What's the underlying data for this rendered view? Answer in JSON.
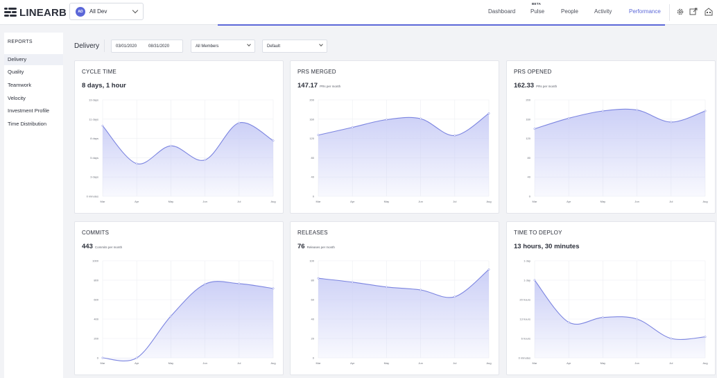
{
  "header": {
    "logo": "LINEARB",
    "team": {
      "initials": "AD",
      "label": "All Dev"
    },
    "nav": [
      {
        "label": "Dashboard",
        "active": false
      },
      {
        "label": "Pulse",
        "badge": "BETA",
        "active": false
      },
      {
        "label": "People",
        "active": false
      },
      {
        "label": "Activity",
        "active": false
      },
      {
        "label": "Performance",
        "active": true
      }
    ],
    "icons": [
      "gear-icon",
      "export-icon",
      "building-icon"
    ]
  },
  "sidebar": {
    "title": "REPORTS",
    "items": [
      {
        "label": "Delivery",
        "active": true
      },
      {
        "label": "Quality"
      },
      {
        "label": "Teamwork"
      },
      {
        "label": "Velocity"
      },
      {
        "label": "Investment Profile"
      },
      {
        "label": "Time Distribution"
      }
    ]
  },
  "filters": {
    "page_title": "Delivery",
    "date_start": "03/01/2020",
    "date_end": "08/31/2020",
    "members": "All Members",
    "view": "Default"
  },
  "colors": {
    "accent": "#5b67d8",
    "line": "#7b84e0",
    "fill": "#c9cdf6"
  },
  "chart_data": [
    {
      "type": "area",
      "title": "CYCLE TIME",
      "value": "8 days, 1 hour",
      "unit": "",
      "categories": [
        "Mar",
        "Apr",
        "May",
        "Jun",
        "Jul",
        "Aug"
      ],
      "yticks": [
        "0 minutes",
        "3 days",
        "5 days",
        "8 days",
        "11 days",
        "13 days"
      ],
      "ylim": [
        0,
        13
      ],
      "values": [
        9.5,
        4.4,
        6.8,
        4.9,
        9.9,
        7.5
      ],
      "grid": true
    },
    {
      "type": "area",
      "title": "PRS MERGED",
      "value": "147.17",
      "unit": "PRs per month",
      "categories": [
        "Mar",
        "Apr",
        "May",
        "Jun",
        "Jul",
        "Aug"
      ],
      "yticks": [
        "0",
        "40",
        "80",
        "120",
        "160",
        "200"
      ],
      "ylim": [
        0,
        200
      ],
      "values": [
        127,
        143,
        159,
        161,
        126,
        172
      ],
      "grid": true
    },
    {
      "type": "area",
      "title": "PRS OPENED",
      "value": "162.33",
      "unit": "PRs per month",
      "categories": [
        "Mar",
        "Apr",
        "May",
        "Jun",
        "Jul",
        "Aug"
      ],
      "yticks": [
        "0",
        "40",
        "80",
        "120",
        "160",
        "200"
      ],
      "ylim": [
        0,
        200
      ],
      "values": [
        140,
        162,
        177,
        179,
        154,
        177
      ],
      "grid": true
    },
    {
      "type": "area",
      "title": "COMMITS",
      "value": "443",
      "unit": "Commits per month",
      "categories": [
        "Mar",
        "Apr",
        "May",
        "Jun",
        "Jul",
        "Aug"
      ],
      "yticks": [
        "0",
        "200",
        "400",
        "600",
        "800",
        "1000"
      ],
      "ylim": [
        0,
        1000
      ],
      "values": [
        0,
        0,
        430,
        760,
        765,
        715
      ],
      "grid": true
    },
    {
      "type": "area",
      "title": "RELEASES",
      "value": "76",
      "unit": "Releases per month",
      "categories": [
        "Mar",
        "Apr",
        "May",
        "Jun",
        "Jul",
        "Aug"
      ],
      "yticks": [
        "0",
        "20",
        "40",
        "60",
        "80",
        "100"
      ],
      "ylim": [
        0,
        100
      ],
      "values": [
        82,
        78,
        73,
        70,
        63,
        91
      ],
      "grid": true
    },
    {
      "type": "area",
      "title": "TIME TO DEPLOY",
      "value": "13 hours, 30 minutes",
      "unit": "",
      "categories": [
        "Mar",
        "Apr",
        "May",
        "Jun",
        "Jul",
        "Aug"
      ],
      "yticks": [
        "0 minutes",
        "6 hours",
        "13 hours",
        "20 hours",
        "1 day",
        "1 day"
      ],
      "ylim": [
        0,
        30
      ],
      "values": [
        24,
        11,
        12.5,
        12,
        6,
        6.5
      ],
      "grid": true
    }
  ]
}
